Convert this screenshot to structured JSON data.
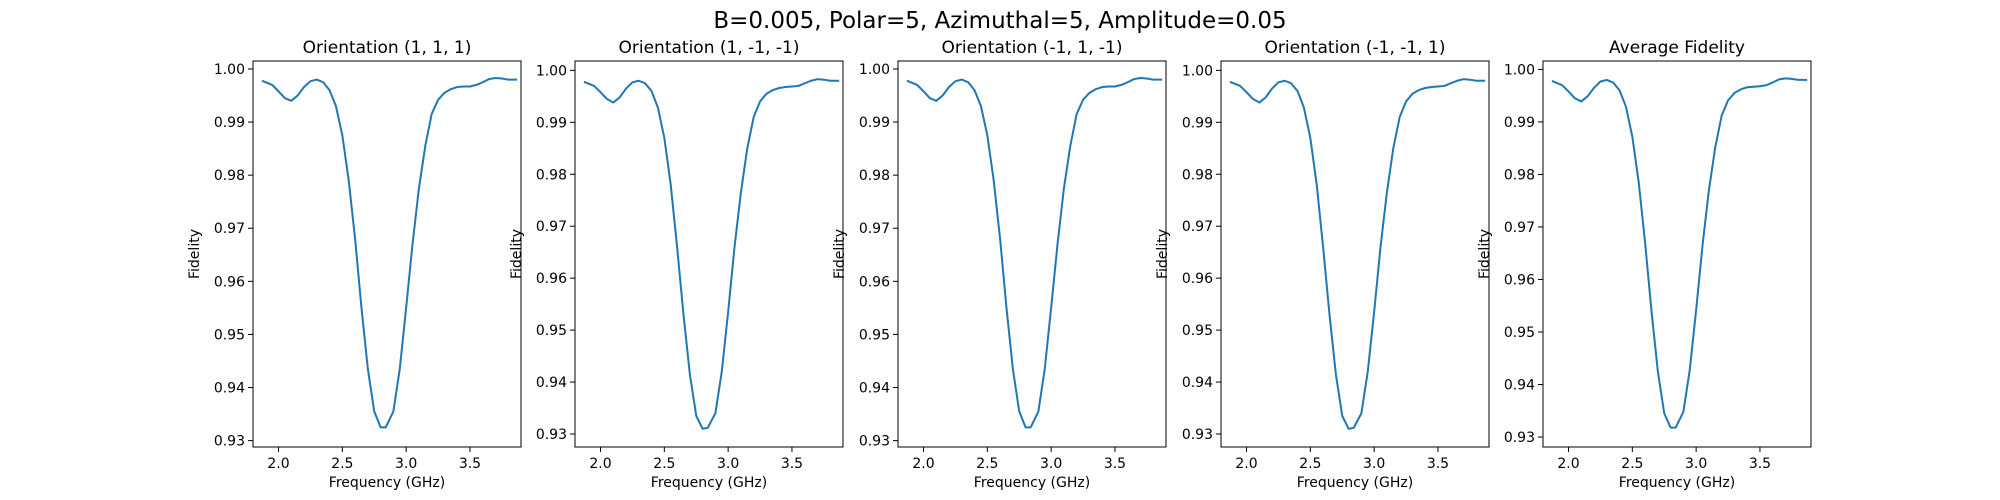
{
  "figure": {
    "suptitle": "B=0.005, Polar=5, Azimuthal=5, Amplitude=0.05",
    "line_color": "#1f77b4"
  },
  "chart_data": [
    {
      "type": "line",
      "title": "Orientation (1, 1, 1)",
      "xlabel": "Frequency (GHz)",
      "ylabel": "Fidelity",
      "xlim": [
        1.8,
        3.9
      ],
      "ylim": [
        0.9288,
        1.0015
      ],
      "xticks": [
        "2.0",
        "2.5",
        "3.0",
        "3.5"
      ],
      "yticks": [
        "0.93",
        "0.94",
        "0.95",
        "0.96",
        "0.97",
        "0.98",
        "0.99",
        "1.00"
      ],
      "series": [
        {
          "name": "fidelity",
          "x": [
            1.87,
            1.95,
            2.0,
            2.05,
            2.1,
            2.15,
            2.2,
            2.25,
            2.3,
            2.35,
            2.4,
            2.45,
            2.5,
            2.55,
            2.6,
            2.65,
            2.7,
            2.75,
            2.8,
            2.84,
            2.9,
            2.95,
            3.0,
            3.05,
            3.1,
            3.15,
            3.2,
            3.25,
            3.3,
            3.35,
            3.4,
            3.45,
            3.5,
            3.55,
            3.6,
            3.65,
            3.7,
            3.75,
            3.8,
            3.85,
            3.87
          ],
          "y": [
            0.9978,
            0.997,
            0.9958,
            0.9945,
            0.994,
            0.995,
            0.9966,
            0.9977,
            0.998,
            0.9975,
            0.996,
            0.993,
            0.9875,
            0.979,
            0.968,
            0.955,
            0.9435,
            0.9355,
            0.9325,
            0.9325,
            0.9355,
            0.9435,
            0.955,
            0.967,
            0.9775,
            0.9855,
            0.9915,
            0.9942,
            0.9955,
            0.9962,
            0.9966,
            0.9967,
            0.9967,
            0.997,
            0.9975,
            0.9981,
            0.9983,
            0.9982,
            0.998,
            0.998,
            0.998
          ]
        }
      ]
    },
    {
      "type": "line",
      "title": "Orientation (1, -1, -1)",
      "xlabel": "Frequency (GHz)",
      "ylabel": "Fidelity",
      "xlim": [
        1.8,
        3.9
      ],
      "ylim": [
        0.9275,
        1.0018
      ],
      "xticks": [
        "2.0",
        "2.5",
        "3.0",
        "3.5"
      ],
      "yticks": [
        "0.93",
        "0.94",
        "0.95",
        "0.96",
        "0.97",
        "0.98",
        "0.99",
        "1.00"
      ],
      "series": [
        {
          "name": "fidelity",
          "x": [
            1.87,
            1.95,
            2.0,
            2.05,
            2.1,
            2.15,
            2.2,
            2.25,
            2.3,
            2.35,
            2.4,
            2.45,
            2.5,
            2.55,
            2.6,
            2.65,
            2.7,
            2.75,
            2.8,
            2.84,
            2.9,
            2.95,
            3.0,
            3.05,
            3.1,
            3.15,
            3.2,
            3.25,
            3.3,
            3.35,
            3.4,
            3.45,
            3.5,
            3.55,
            3.6,
            3.65,
            3.7,
            3.75,
            3.8,
            3.85,
            3.87
          ],
          "y": [
            0.9978,
            0.997,
            0.9958,
            0.9945,
            0.9938,
            0.9948,
            0.9965,
            0.9977,
            0.998,
            0.9975,
            0.996,
            0.9928,
            0.987,
            0.978,
            0.966,
            0.953,
            0.9415,
            0.9335,
            0.931,
            0.9312,
            0.934,
            0.942,
            0.9535,
            0.966,
            0.9765,
            0.985,
            0.991,
            0.994,
            0.9955,
            0.9962,
            0.9966,
            0.9968,
            0.9969,
            0.997,
            0.9975,
            0.998,
            0.9983,
            0.9982,
            0.998,
            0.998,
            0.998
          ]
        }
      ]
    },
    {
      "type": "line",
      "title": "Orientation (-1, 1, -1)",
      "xlabel": "Frequency (GHz)",
      "ylabel": "Fidelity",
      "xlim": [
        1.8,
        3.9
      ],
      "ylim": [
        0.9288,
        1.0015
      ],
      "xticks": [
        "2.0",
        "2.5",
        "3.0",
        "3.5"
      ],
      "yticks": [
        "0.93",
        "0.94",
        "0.95",
        "0.96",
        "0.97",
        "0.98",
        "0.99",
        "1.00"
      ],
      "series": [
        {
          "name": "fidelity",
          "x": [
            1.87,
            1.95,
            2.0,
            2.05,
            2.1,
            2.15,
            2.2,
            2.25,
            2.3,
            2.35,
            2.4,
            2.45,
            2.5,
            2.55,
            2.6,
            2.65,
            2.7,
            2.75,
            2.8,
            2.84,
            2.9,
            2.95,
            3.0,
            3.05,
            3.1,
            3.15,
            3.2,
            3.25,
            3.3,
            3.35,
            3.4,
            3.45,
            3.5,
            3.55,
            3.6,
            3.65,
            3.7,
            3.75,
            3.8,
            3.85,
            3.87
          ],
          "y": [
            0.9978,
            0.997,
            0.9958,
            0.9945,
            0.994,
            0.995,
            0.9966,
            0.9977,
            0.998,
            0.9975,
            0.996,
            0.993,
            0.9875,
            0.979,
            0.968,
            0.955,
            0.9435,
            0.9355,
            0.9325,
            0.9325,
            0.9355,
            0.9435,
            0.955,
            0.967,
            0.9775,
            0.9855,
            0.9915,
            0.9942,
            0.9955,
            0.9962,
            0.9966,
            0.9967,
            0.9967,
            0.997,
            0.9975,
            0.9981,
            0.9983,
            0.9982,
            0.998,
            0.998,
            0.998
          ]
        }
      ]
    },
    {
      "type": "line",
      "title": "Orientation (-1, -1, 1)",
      "xlabel": "Frequency (GHz)",
      "ylabel": "Fidelity",
      "xlim": [
        1.8,
        3.9
      ],
      "ylim": [
        0.9275,
        1.0018
      ],
      "xticks": [
        "2.0",
        "2.5",
        "3.0",
        "3.5"
      ],
      "yticks": [
        "0.93",
        "0.94",
        "0.95",
        "0.96",
        "0.97",
        "0.98",
        "0.99",
        "1.00"
      ],
      "series": [
        {
          "name": "fidelity",
          "x": [
            1.87,
            1.95,
            2.0,
            2.05,
            2.1,
            2.15,
            2.2,
            2.25,
            2.3,
            2.35,
            2.4,
            2.45,
            2.5,
            2.55,
            2.6,
            2.65,
            2.7,
            2.75,
            2.8,
            2.84,
            2.9,
            2.95,
            3.0,
            3.05,
            3.1,
            3.15,
            3.2,
            3.25,
            3.3,
            3.35,
            3.4,
            3.45,
            3.5,
            3.55,
            3.6,
            3.65,
            3.7,
            3.75,
            3.8,
            3.85,
            3.87
          ],
          "y": [
            0.9978,
            0.997,
            0.9958,
            0.9945,
            0.9938,
            0.9948,
            0.9965,
            0.9977,
            0.998,
            0.9975,
            0.996,
            0.9928,
            0.987,
            0.978,
            0.966,
            0.953,
            0.9415,
            0.9335,
            0.931,
            0.9312,
            0.934,
            0.942,
            0.9535,
            0.966,
            0.9765,
            0.985,
            0.991,
            0.994,
            0.9955,
            0.9962,
            0.9966,
            0.9968,
            0.9969,
            0.997,
            0.9975,
            0.998,
            0.9983,
            0.9982,
            0.998,
            0.998,
            0.998
          ]
        }
      ]
    },
    {
      "type": "line",
      "title": "Average Fidelity",
      "xlabel": "Frequency (GHz)",
      "ylabel": "Fidelity",
      "xlim": [
        1.8,
        3.9
      ],
      "ylim": [
        0.9281,
        1.0016
      ],
      "xticks": [
        "2.0",
        "2.5",
        "3.0",
        "3.5"
      ],
      "yticks": [
        "0.93",
        "0.94",
        "0.95",
        "0.96",
        "0.97",
        "0.98",
        "0.99",
        "1.00"
      ],
      "series": [
        {
          "name": "fidelity",
          "x": [
            1.87,
            1.95,
            2.0,
            2.05,
            2.1,
            2.15,
            2.2,
            2.25,
            2.3,
            2.35,
            2.4,
            2.45,
            2.5,
            2.55,
            2.6,
            2.65,
            2.7,
            2.75,
            2.8,
            2.84,
            2.9,
            2.95,
            3.0,
            3.05,
            3.1,
            3.15,
            3.2,
            3.25,
            3.3,
            3.35,
            3.4,
            3.45,
            3.5,
            3.55,
            3.6,
            3.65,
            3.7,
            3.75,
            3.8,
            3.85,
            3.87
          ],
          "y": [
            0.9978,
            0.997,
            0.9958,
            0.9945,
            0.9939,
            0.9949,
            0.9965,
            0.9977,
            0.998,
            0.9975,
            0.996,
            0.9929,
            0.9872,
            0.9785,
            0.967,
            0.954,
            0.9425,
            0.9345,
            0.9318,
            0.9318,
            0.9348,
            0.9428,
            0.9542,
            0.9665,
            0.977,
            0.9852,
            0.9912,
            0.9941,
            0.9955,
            0.9962,
            0.9966,
            0.9967,
            0.9968,
            0.997,
            0.9975,
            0.9981,
            0.9983,
            0.9982,
            0.998,
            0.998,
            0.998
          ]
        }
      ]
    }
  ]
}
